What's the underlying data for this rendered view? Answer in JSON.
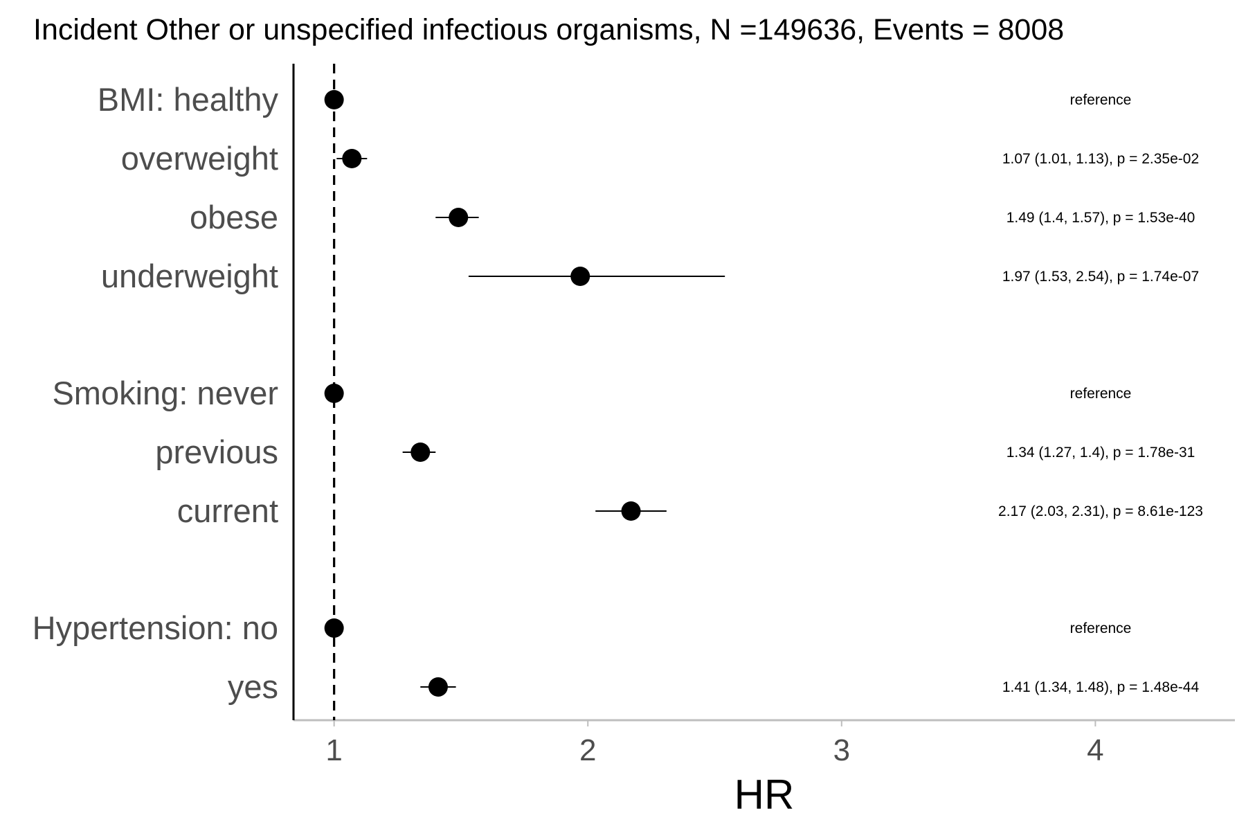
{
  "chart_data": {
    "type": "scatter",
    "subtype": "forest-plot",
    "title": "Incident Other or unspecified infectious organisms, N =149636, Events = 8008",
    "xlabel": "HR",
    "ylabel": "",
    "xlim": [
      0.84,
      4.55
    ],
    "xticks": [
      1,
      2,
      3,
      4
    ],
    "xtick_labels": [
      "1",
      "2",
      "3",
      "4"
    ],
    "reference_line": 1,
    "grid": false,
    "legend": "none",
    "colors": {
      "point": "#000000",
      "row_label": "#4d4d4d",
      "x_axis": "#bebebe",
      "y_axis": "#000000"
    },
    "rows": [
      {
        "label": "BMI: healthy",
        "hr": 1.0,
        "lower": 1.0,
        "upper": 1.0,
        "annotation": "reference"
      },
      {
        "label": "overweight",
        "hr": 1.07,
        "lower": 1.01,
        "upper": 1.13,
        "annotation": "1.07 (1.01, 1.13), p = 2.35e-02"
      },
      {
        "label": "obese",
        "hr": 1.49,
        "lower": 1.4,
        "upper": 1.57,
        "annotation": "1.49 (1.4, 1.57), p = 1.53e-40"
      },
      {
        "label": "underweight",
        "hr": 1.97,
        "lower": 1.53,
        "upper": 2.54,
        "annotation": "1.97 (1.53, 2.54), p = 1.74e-07"
      },
      {
        "label": "Smoking: never",
        "hr": 1.0,
        "lower": 1.0,
        "upper": 1.0,
        "annotation": "reference"
      },
      {
        "label": "previous",
        "hr": 1.34,
        "lower": 1.27,
        "upper": 1.4,
        "annotation": "1.34 (1.27, 1.4), p = 1.78e-31"
      },
      {
        "label": "current",
        "hr": 2.17,
        "lower": 2.03,
        "upper": 2.31,
        "annotation": "2.17 (2.03, 2.31), p = 8.61e-123"
      },
      {
        "label": "Hypertension: no",
        "hr": 1.0,
        "lower": 1.0,
        "upper": 1.0,
        "annotation": "reference"
      },
      {
        "label": "yes",
        "hr": 1.41,
        "lower": 1.34,
        "upper": 1.48,
        "annotation": "1.41 (1.34, 1.48), p = 1.48e-44"
      }
    ]
  }
}
